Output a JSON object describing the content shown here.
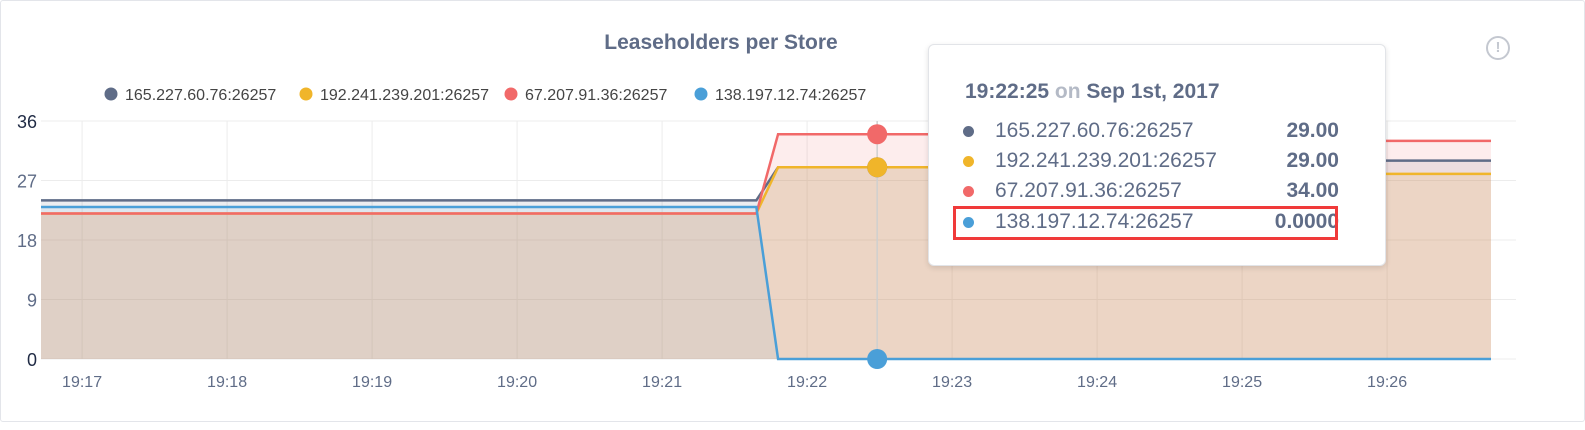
{
  "chart_data": {
    "type": "area",
    "title": "Leaseholders per Store",
    "ylim": [
      0,
      36
    ],
    "yticks": [
      "0",
      "9",
      "18",
      "27",
      "36"
    ],
    "xlim": [
      "19:16:43",
      "19:26:43"
    ],
    "xticks": [
      "19:17",
      "19:18",
      "19:19",
      "19:20",
      "19:21",
      "19:22",
      "19:23",
      "19:24",
      "19:25",
      "19:26"
    ],
    "grid": true,
    "legend_placement": "top",
    "series": [
      {
        "name": "165.227.60.76:26257",
        "color": "#5f6c87",
        "points": [
          [
            "19:16:43",
            24
          ],
          [
            "19:21:39",
            24
          ],
          [
            "19:21:48",
            29
          ],
          [
            "19:25:00",
            29
          ],
          [
            "19:25:09",
            30
          ],
          [
            "19:26:43",
            30
          ]
        ]
      },
      {
        "name": "192.241.239.201:26257",
        "color": "#f0b52a",
        "points": [
          [
            "19:16:43",
            22
          ],
          [
            "19:21:39",
            22
          ],
          [
            "19:21:48",
            29
          ],
          [
            "19:25:00",
            29
          ],
          [
            "19:25:09",
            28
          ],
          [
            "19:26:43",
            28
          ]
        ]
      },
      {
        "name": "67.207.91.36:26257",
        "color": "#f16969",
        "points": [
          [
            "19:16:43",
            22
          ],
          [
            "19:21:39",
            22
          ],
          [
            "19:21:48",
            34
          ],
          [
            "19:25:00",
            34
          ],
          [
            "19:25:09",
            33
          ],
          [
            "19:26:43",
            33
          ]
        ]
      },
      {
        "name": "138.197.12.74:26257",
        "color": "#4a9fd8",
        "points": [
          [
            "19:16:43",
            23
          ],
          [
            "19:21:39",
            23
          ],
          [
            "19:21:48",
            0
          ],
          [
            "19:26:43",
            0
          ]
        ]
      }
    ],
    "hover_time": "19:22:29"
  },
  "info_icon": "info-circle-icon",
  "tooltip": {
    "time": "19:22:25",
    "on": "on",
    "date": "Sep 1st, 2017",
    "rows": [
      {
        "name": "165.227.60.76:26257",
        "value": "29.00",
        "color": "#5f6c87"
      },
      {
        "name": "192.241.239.201:26257",
        "value": "29.00",
        "color": "#f0b52a"
      },
      {
        "name": "67.207.91.36:26257",
        "value": "34.00",
        "color": "#f16969"
      },
      {
        "name": "138.197.12.74:26257",
        "value": "0.0000",
        "color": "#4a9fd8"
      }
    ],
    "highlight_color": "#f03a3a"
  }
}
